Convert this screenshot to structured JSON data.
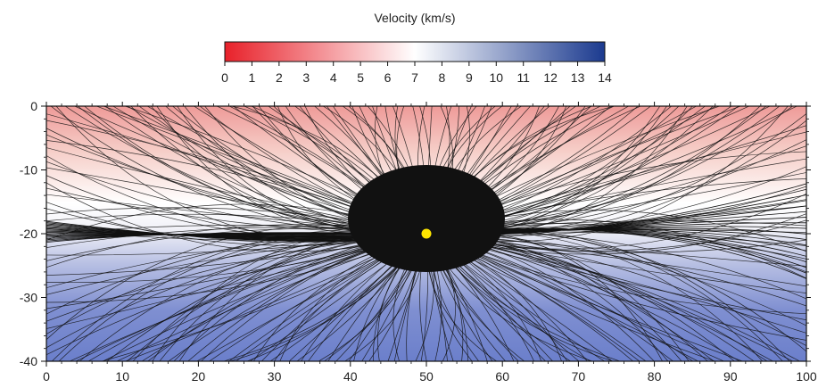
{
  "chart_data": {
    "type": "heatmap",
    "colorbar": {
      "title": "Velocity (km/s)",
      "range": [
        0,
        14
      ],
      "ticks": [
        0,
        1,
        2,
        3,
        4,
        5,
        6,
        7,
        8,
        9,
        10,
        11,
        12,
        13,
        14
      ],
      "tick_labels": [
        "0",
        "1",
        "2",
        "3",
        "4",
        "5",
        "6",
        "7",
        "8",
        "9",
        "10",
        "11",
        "12",
        "13",
        "14"
      ],
      "colors": {
        "low": "#e8212a",
        "mid": "#ffffff",
        "high": "#1b3a8f"
      },
      "placement": "top"
    },
    "x_axis": {
      "range": [
        0,
        100
      ],
      "ticks": [
        0,
        10,
        20,
        30,
        40,
        50,
        60,
        70,
        80,
        90,
        100
      ],
      "tick_labels": [
        "0",
        "10",
        "20",
        "30",
        "40",
        "50",
        "60",
        "70",
        "80",
        "90",
        "100"
      ]
    },
    "y_axis": {
      "range": [
        -40,
        0
      ],
      "ticks": [
        0,
        -10,
        -20,
        -30,
        -40
      ],
      "tick_labels": [
        "0",
        "-10",
        "-20",
        "-30",
        "-40"
      ]
    },
    "source": {
      "x": 50,
      "y": -20,
      "color": "#ffe600"
    },
    "velocity_layers": [
      {
        "depth_top": 0,
        "depth_bottom": -8,
        "velocity": 3.5
      },
      {
        "depth_top": -8,
        "depth_bottom": -18,
        "velocity": 6.0
      },
      {
        "depth_top": -18,
        "depth_bottom": -26,
        "velocity": 9.0
      },
      {
        "depth_top": -26,
        "depth_bottom": -40,
        "velocity": 10.5
      }
    ],
    "rays": {
      "color": "#111111",
      "count": 300
    }
  }
}
